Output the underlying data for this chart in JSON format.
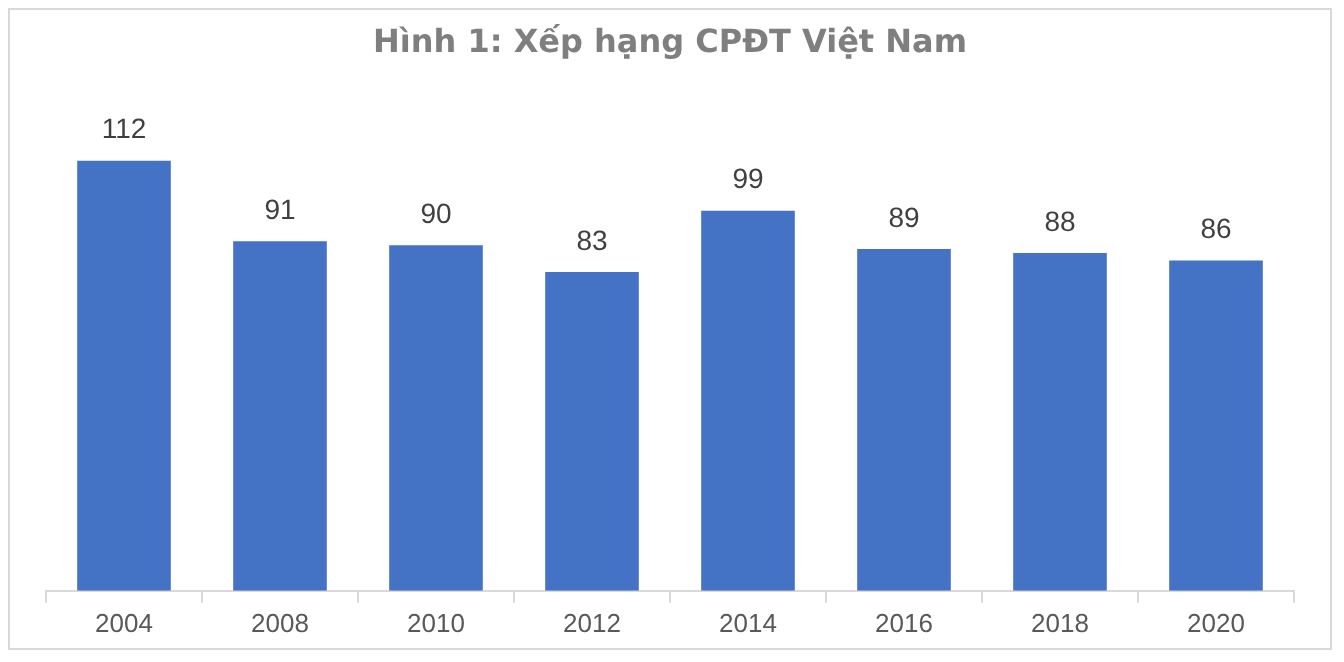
{
  "chart_data": {
    "type": "bar",
    "title": "Hình 1: Xếp hạng CPĐT Việt Nam",
    "categories": [
      "2004",
      "2008",
      "2010",
      "2012",
      "2014",
      "2016",
      "2018",
      "2020"
    ],
    "values": [
      112,
      91,
      90,
      83,
      99,
      89,
      88,
      86
    ],
    "color": "#4472c4",
    "data_labels": true,
    "grid": false,
    "legend": false,
    "tick_labels": "x"
  }
}
